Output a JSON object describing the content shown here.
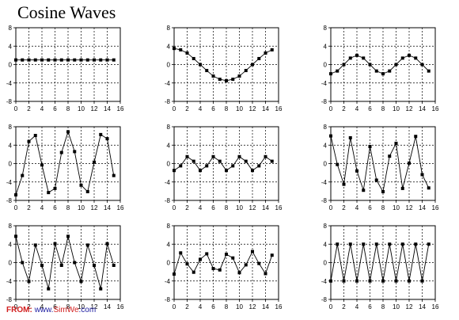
{
  "title": "Cosine Waves",
  "footer": {
    "from_label": "FROM:",
    "site_prefix": "www.",
    "site_brand": "SimWe",
    "site_suffix": ".com"
  },
  "chart_data": [
    {
      "type": "line",
      "x": [
        0,
        1,
        2,
        3,
        4,
        5,
        6,
        7,
        8,
        9,
        10,
        11,
        12,
        13,
        14,
        15
      ],
      "series": [
        {
          "values": [
            1,
            1,
            1,
            1,
            1,
            1,
            1,
            1,
            1,
            1,
            1,
            1,
            1,
            1,
            1,
            1
          ]
        }
      ],
      "xlim": [
        0,
        16
      ],
      "ylim": [
        -8,
        8
      ],
      "xticks": [
        0,
        2,
        4,
        6,
        8,
        10,
        12,
        14,
        16
      ],
      "yticks": [
        8,
        4,
        0,
        -4,
        -8
      ],
      "grid": true,
      "grid_style": "dashed"
    },
    {
      "type": "line",
      "x": [
        0,
        1,
        2,
        3,
        4,
        5,
        6,
        7,
        8,
        9,
        10,
        11,
        12,
        13,
        14,
        15
      ],
      "series": [
        {
          "values": [
            3.5,
            3.2,
            2.5,
            1.3,
            0,
            -1.3,
            -2.5,
            -3.2,
            -3.5,
            -3.2,
            -2.5,
            -1.3,
            0,
            1.3,
            2.5,
            3.2
          ]
        }
      ],
      "xlim": [
        0,
        16
      ],
      "ylim": [
        -8,
        8
      ],
      "xticks": [
        0,
        2,
        4,
        6,
        8,
        10,
        12,
        14,
        16
      ],
      "yticks": [
        8,
        4,
        0,
        -4,
        -8
      ],
      "grid": true,
      "grid_style": "dashed"
    },
    {
      "type": "line",
      "x": [
        0,
        1,
        2,
        3,
        4,
        5,
        6,
        7,
        8,
        9,
        10,
        11,
        12,
        13,
        14,
        15
      ],
      "series": [
        {
          "values": [
            -2,
            -1.4,
            0,
            1.4,
            2,
            1.4,
            0,
            -1.4,
            -2,
            -1.4,
            0,
            1.4,
            2,
            1.4,
            0,
            -1.4
          ]
        }
      ],
      "xlim": [
        0,
        16
      ],
      "ylim": [
        -8,
        8
      ],
      "xticks": [
        0,
        2,
        4,
        6,
        8,
        10,
        12,
        14,
        16
      ],
      "yticks": [
        8,
        4,
        0,
        -4,
        -8
      ],
      "grid": true,
      "grid_style": "dashed"
    },
    {
      "type": "line",
      "x": [
        0,
        1,
        2,
        3,
        4,
        5,
        6,
        7,
        8,
        9,
        10,
        11,
        12,
        13,
        14,
        15
      ],
      "series": [
        {
          "values": [
            -6.8,
            -2.6,
            4.8,
            6.1,
            -0.3,
            -6.3,
            -5.4,
            2.4,
            6.9,
            2.6,
            -4.7,
            -6.1,
            0.3,
            6.3,
            5.4,
            -2.6
          ]
        }
      ],
      "xlim": [
        0,
        16
      ],
      "ylim": [
        -8,
        8
      ],
      "xticks": [
        0,
        2,
        4,
        6,
        8,
        10,
        12,
        14,
        16
      ],
      "yticks": [
        8,
        4,
        0,
        -4,
        -8
      ],
      "grid": true,
      "grid_style": "dashed"
    },
    {
      "type": "line",
      "x": [
        0,
        1,
        2,
        3,
        4,
        5,
        6,
        7,
        8,
        9,
        10,
        11,
        12,
        13,
        14,
        15
      ],
      "series": [
        {
          "values": [
            -1.5,
            -0.5,
            1.5,
            0.5,
            -1.5,
            -0.5,
            1.5,
            0.5,
            -1.5,
            -0.5,
            1.5,
            0.5,
            -1.5,
            -0.5,
            1.5,
            0.5
          ]
        }
      ],
      "xlim": [
        0,
        16
      ],
      "ylim": [
        -8,
        8
      ],
      "xticks": [
        0,
        2,
        4,
        6,
        8,
        10,
        12,
        14,
        16
      ],
      "yticks": [
        8,
        4,
        0,
        -4,
        -8
      ],
      "grid": true,
      "grid_style": "dashed"
    },
    {
      "type": "line",
      "x": [
        0,
        1,
        2,
        3,
        4,
        5,
        6,
        7,
        8,
        9,
        10,
        11,
        12,
        13,
        14,
        15
      ],
      "series": [
        {
          "values": [
            6,
            -0.2,
            -4.5,
            5.6,
            -1.6,
            -5.8,
            3.7,
            -3.6,
            -6.1,
            1.6,
            4.4,
            -5.4,
            0.1,
            5.9,
            -2.4,
            -5.3
          ]
        }
      ],
      "xlim": [
        0,
        16
      ],
      "ylim": [
        -8,
        8
      ],
      "xticks": [
        0,
        2,
        4,
        6,
        8,
        10,
        12,
        14,
        16
      ],
      "yticks": [
        8,
        4,
        0,
        -4,
        -8
      ],
      "grid": true,
      "grid_style": "dashed"
    },
    {
      "type": "line",
      "x": [
        0,
        1,
        2,
        3,
        4,
        5,
        6,
        7,
        8,
        9,
        10,
        11,
        12,
        13,
        14,
        15
      ],
      "series": [
        {
          "values": [
            5.7,
            0,
            -4.1,
            3.8,
            -0.6,
            -5.7,
            4.1,
            -0.6,
            5.7,
            0,
            -4.1,
            3.8,
            -0.6,
            -5.7,
            4.1,
            -0.6
          ]
        }
      ],
      "xlim": [
        0,
        16
      ],
      "ylim": [
        -8,
        8
      ],
      "xticks": [
        0,
        2,
        4,
        6,
        8,
        10,
        12,
        14,
        16
      ],
      "yticks": [
        8,
        4,
        0,
        -4,
        -8
      ],
      "grid": true,
      "grid_style": "dashed"
    },
    {
      "type": "line",
      "x": [
        0,
        1,
        2,
        3,
        4,
        5,
        6,
        7,
        8,
        9,
        10,
        11,
        12,
        13,
        14,
        15
      ],
      "series": [
        {
          "values": [
            -2.5,
            2.1,
            -0.3,
            -2.1,
            0.7,
            1.9,
            -1.3,
            -1.6,
            1.8,
            1,
            -2.2,
            -0.5,
            2.4,
            -0.2,
            -2.4,
            1.6
          ]
        }
      ],
      "xlim": [
        0,
        16
      ],
      "ylim": [
        -8,
        8
      ],
      "xticks": [
        0,
        2,
        4,
        6,
        8,
        10,
        12,
        14,
        16
      ],
      "yticks": [
        8,
        4,
        0,
        -4,
        -8
      ],
      "grid": true,
      "grid_style": "dashed"
    },
    {
      "type": "line",
      "x": [
        0,
        1,
        2,
        3,
        4,
        5,
        6,
        7,
        8,
        9,
        10,
        11,
        12,
        13,
        14,
        15
      ],
      "series": [
        {
          "values": [
            -4,
            4,
            -4,
            4,
            -4,
            4,
            -4,
            4,
            -4,
            4,
            -4,
            4,
            -4,
            4,
            -4,
            4
          ]
        }
      ],
      "xlim": [
        0,
        16
      ],
      "ylim": [
        -8,
        8
      ],
      "xticks": [
        0,
        2,
        4,
        6,
        8,
        10,
        12,
        14,
        16
      ],
      "yticks": [
        8,
        4,
        0,
        -4,
        -8
      ],
      "grid": true,
      "grid_style": "dashed"
    }
  ]
}
